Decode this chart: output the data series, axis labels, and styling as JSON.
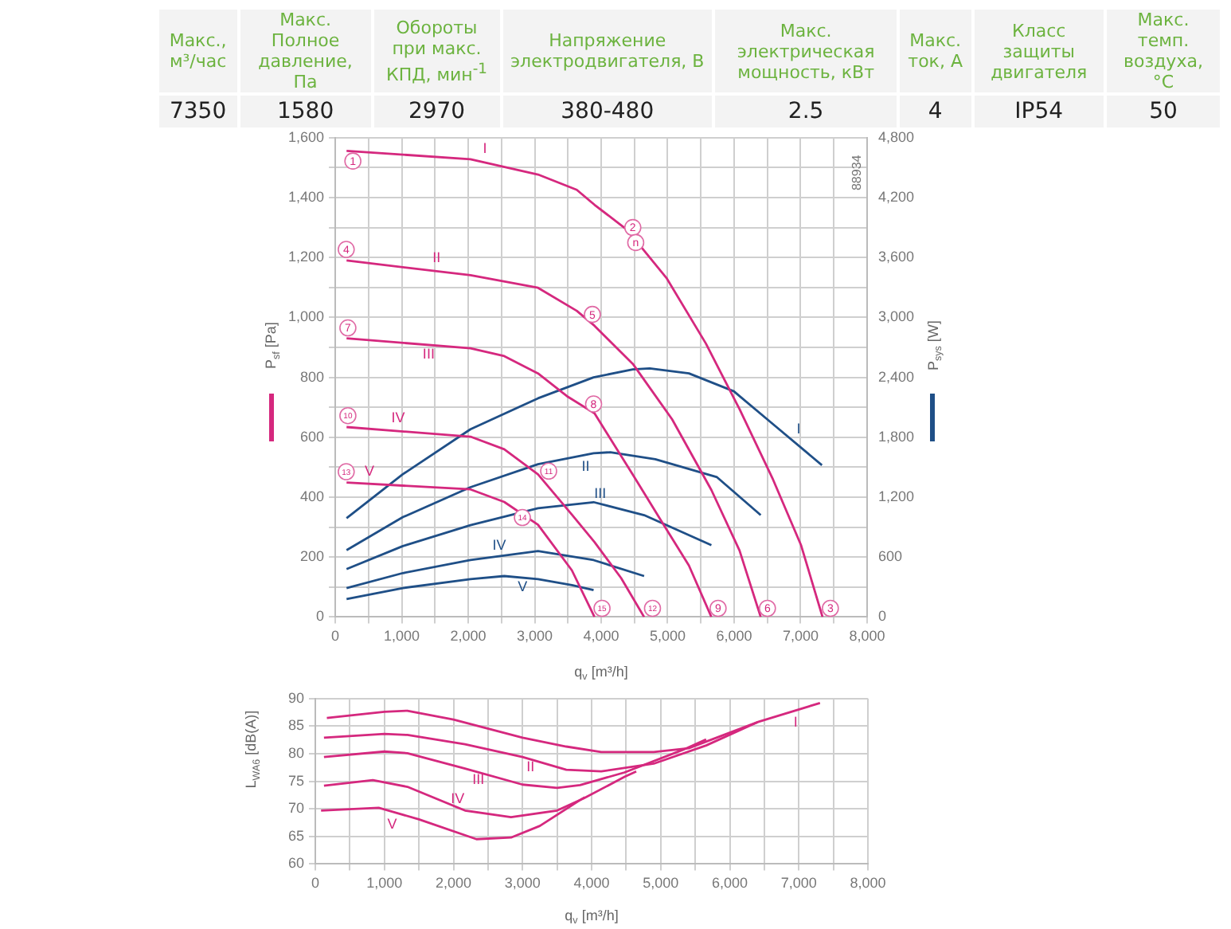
{
  "chart_data": [
    {
      "type": "other",
      "categories": [
        "Макс., м³/час",
        "Макс. Полное давление, Па",
        "Обороты при макс. КПД, мин$^{-1}$",
        "Напряжение электродвигателя, В",
        "Макс. электрическая мощность, кВт",
        "Макс. ток, А",
        "Класс защиты двигателя",
        "Макс. темп. воздуха, °C"
      ],
      "value_labels": [
        "7350",
        "1580",
        "2970",
        "380-480",
        "2.5",
        "4",
        "IP54",
        "50"
      ]
    },
    {
      "type": "line",
      "xlabel": "q$_{v}$ [m³/h]",
      "ylabel": "P$_{sf}$ [Pa]",
      "y2label": "P$_{sys}$ [W]",
      "grid": true,
      "legend": false,
      "marker": "none",
      "xlim": [
        0,
        8000
      ],
      "xticks": [
        0,
        {
          "value": 500,
          "label": null
        },
        {
          "value": 1000,
          "label": "1,000"
        },
        {
          "value": 1500,
          "label": null
        },
        {
          "value": 2000,
          "label": "2,000"
        },
        {
          "value": 2500,
          "label": null
        },
        {
          "value": 3000,
          "label": "3,000"
        },
        {
          "value": 3500,
          "label": null
        },
        {
          "value": 4000,
          "label": "4,000"
        },
        {
          "value": 4500,
          "label": null
        },
        {
          "value": 5000,
          "label": "5,000"
        },
        {
          "value": 5500,
          "label": null
        },
        {
          "value": 6000,
          "label": "6,000"
        },
        {
          "value": 6500,
          "label": null
        },
        {
          "value": 7000,
          "label": "7,000"
        },
        {
          "value": 7500,
          "label": null
        },
        {
          "value": 8000,
          "label": "8,000"
        }
      ],
      "ylim": [
        0,
        1600
      ],
      "yticks": [
        0,
        {
          "value": 100,
          "label": null
        },
        200,
        {
          "value": 300,
          "label": null
        },
        400,
        {
          "value": 500,
          "label": null
        },
        600,
        {
          "value": 700,
          "label": null
        },
        800,
        {
          "value": 900,
          "label": null
        },
        {
          "value": 1000,
          "label": "1,000"
        },
        {
          "value": 1100,
          "label": null
        },
        {
          "value": 1200,
          "label": "1,200"
        },
        {
          "value": 1300,
          "label": null
        },
        {
          "value": 1400,
          "label": "1,400"
        },
        {
          "value": 1500,
          "label": null
        },
        {
          "value": 1600,
          "label": "1,600"
        }
      ],
      "y2lim": [
        0,
        4800
      ],
      "y2ticks": [
        0,
        600,
        {
          "value": 1200,
          "label": "1,200"
        },
        {
          "value": 1800,
          "label": "1,800"
        },
        {
          "value": 2400,
          "label": "2,400"
        },
        {
          "value": 3000,
          "label": "3,000"
        },
        {
          "value": 3600,
          "label": "3,600"
        },
        {
          "value": 4200,
          "label": "4,200"
        },
        {
          "value": 4800,
          "label": "4,800"
        }
      ],
      "series": [
        {
          "name": "I",
          "color": "#d5287e",
          "axis": "y",
          "x": [
            170,
            2034,
            3050,
            3633,
            3900,
            4392,
            4982,
            5575,
            6081,
            6587,
            7008,
            7330
          ],
          "values": [
            1556,
            1528,
            1477,
            1426,
            1376,
            1292,
            1132,
            913,
            694,
            458,
            239,
            0
          ]
        },
        {
          "name": "II",
          "color": "#d5287e",
          "axis": "y",
          "x": [
            170,
            2034,
            3050,
            3633,
            3900,
            4476,
            5067,
            5658,
            6081,
            6400
          ],
          "values": [
            1190,
            1141,
            1099,
            1022,
            972,
            845,
            660,
            424,
            222,
            0
          ]
        },
        {
          "name": "III",
          "color": "#d5287e",
          "axis": "y",
          "x": [
            170,
            2034,
            2542,
            3050,
            3500,
            3900,
            4476,
            4898,
            5320,
            5658
          ],
          "values": [
            930,
            897,
            871,
            813,
            735,
            680,
            475,
            323,
            172,
            0
          ]
        },
        {
          "name": "IV",
          "color": "#d5287e",
          "axis": "y",
          "x": [
            170,
            2034,
            2542,
            3050,
            3559,
            3900,
            4300,
            4646
          ],
          "values": [
            634,
            602,
            560,
            476,
            342,
            250,
            130,
            0
          ]
        },
        {
          "name": "V",
          "color": "#d5287e",
          "axis": "y",
          "x": [
            170,
            2034,
            2542,
            3050,
            3559,
            3900
          ],
          "values": [
            449,
            426,
            384,
            308,
            156,
            0
          ]
        },
        {
          "name": "I",
          "color": "#1f4f87",
          "axis": "y2",
          "x": [
            170,
            1017,
            2034,
            3050,
            3886,
            4476,
            4730,
            5320,
            5996,
            6587,
            7321
          ],
          "values": [
            990,
            1430,
            1880,
            2190,
            2400,
            2480,
            2490,
            2440,
            2260,
            1930,
            1520
          ]
        },
        {
          "name": "II",
          "color": "#1f4f87",
          "axis": "y2",
          "x": [
            170,
            1017,
            2034,
            3050,
            3886,
            4138,
            4814,
            5743,
            6400
          ],
          "values": [
            670,
            1000,
            1300,
            1530,
            1640,
            1650,
            1580,
            1400,
            1020
          ]
        },
        {
          "name": "III",
          "color": "#1f4f87",
          "axis": "y2",
          "x": [
            170,
            1017,
            2034,
            3050,
            3886,
            4646,
            5658
          ],
          "values": [
            480,
            710,
            920,
            1090,
            1150,
            1020,
            720
          ]
        },
        {
          "name": "IV",
          "color": "#1f4f87",
          "axis": "y2",
          "x": [
            170,
            1017,
            2034,
            3050,
            3886,
            4646
          ],
          "values": [
            290,
            440,
            570,
            660,
            570,
            410
          ]
        },
        {
          "name": "V",
          "color": "#1f4f87",
          "axis": "y2",
          "x": [
            170,
            1017,
            2034,
            2542,
            3050,
            3559,
            3886
          ],
          "values": [
            180,
            290,
            380,
            410,
            380,
            320,
            270
          ]
        }
      ],
      "annotations": [
        {
          "text": "1",
          "x": 265,
          "y": 1522
        },
        {
          "text": "2",
          "x": 4476,
          "y": 1300
        },
        {
          "text": "n",
          "x": 4520,
          "y": 1250
        },
        {
          "text": "3",
          "x": 7448,
          "y": 29
        },
        {
          "text": "4",
          "x": 165,
          "y": 1227
        },
        {
          "text": "5",
          "x": 3868,
          "y": 1010
        },
        {
          "text": "6",
          "x": 6501,
          "y": 29
        },
        {
          "text": "7",
          "x": 190,
          "y": 965
        },
        {
          "text": "8",
          "x": 3886,
          "y": 711
        },
        {
          "text": "9",
          "x": 5759,
          "y": 29
        },
        {
          "text": "10",
          "x": 190,
          "y": 672
        },
        {
          "text": "11",
          "x": 3210,
          "y": 487
        },
        {
          "text": "12",
          "x": 4772,
          "y": 29
        },
        {
          "text": "13",
          "x": 165,
          "y": 485
        },
        {
          "text": "14",
          "x": 2815,
          "y": 332
        },
        {
          "text": "15",
          "x": 4013,
          "y": 29
        },
        "88934"
      ]
    },
    {
      "type": "line",
      "xlabel": "q$_{v}$ [m³/h]",
      "ylabel": "L$_{WA6}$ [dB(A)]",
      "grid": true,
      "legend": false,
      "marker": "none",
      "xlim": [
        0,
        8000
      ],
      "xticks": [
        0,
        {
          "value": 500,
          "label": null
        },
        {
          "value": 1000,
          "label": "1,000"
        },
        {
          "value": 1500,
          "label": null
        },
        {
          "value": 2000,
          "label": "2,000"
        },
        {
          "value": 2500,
          "label": null
        },
        {
          "value": 3000,
          "label": "3,000"
        },
        {
          "value": 3500,
          "label": null
        },
        {
          "value": 4000,
          "label": "4,000"
        },
        {
          "value": 4500,
          "label": null
        },
        {
          "value": 5000,
          "label": "5,000"
        },
        {
          "value": 5500,
          "label": null
        },
        {
          "value": 6000,
          "label": "6,000"
        },
        {
          "value": 6500,
          "label": null
        },
        {
          "value": 7000,
          "label": "7,000"
        },
        {
          "value": 7500,
          "label": null
        },
        {
          "value": 8000,
          "label": "8,000"
        }
      ],
      "ylim": [
        60,
        90
      ],
      "yticks": [
        60,
        65,
        70,
        75,
        80,
        85,
        90
      ],
      "series": [
        {
          "name": "I",
          "color": "#d5287e",
          "x": [
            167,
            1000,
            1333,
            2000,
            3000,
            3633,
            4139,
            4899,
            5405,
            6418,
            7306
          ],
          "values": [
            86.5,
            87.6,
            87.8,
            86.2,
            82.9,
            81.3,
            80.3,
            80.3,
            81.0,
            85.8,
            89.2
          ]
        },
        {
          "name": "II",
          "color": "#d5287e",
          "x": [
            125,
            1000,
            1333,
            2167,
            3000,
            3633,
            4139,
            4899,
            5658,
            6400
          ],
          "values": [
            82.9,
            83.6,
            83.4,
            81.7,
            79.4,
            77.1,
            76.8,
            78.2,
            81.5,
            85.7
          ]
        },
        {
          "name": "III",
          "color": "#d5287e",
          "x": [
            125,
            1000,
            1333,
            2167,
            3000,
            3500,
            3833,
            4476,
            5320,
            5658
          ],
          "values": [
            79.4,
            80.4,
            80.1,
            77.3,
            74.4,
            73.8,
            74.3,
            76.6,
            80.7,
            82.6
          ]
        },
        {
          "name": "IV",
          "color": "#d5287e",
          "x": [
            125,
            833,
            1333,
            2167,
            2833,
            3500,
            3886,
            4476,
            4646
          ],
          "values": [
            74.2,
            75.2,
            74.0,
            69.7,
            68.5,
            69.7,
            71.9,
            75.8,
            76.8
          ]
        },
        {
          "name": "V",
          "color": "#d5287e",
          "x": [
            83,
            917,
            1500,
            2333,
            2833,
            3250,
            3833,
            3900
          ],
          "values": [
            69.7,
            70.2,
            68.1,
            64.5,
            64.8,
            66.9,
            71.6,
            72.1
          ]
        }
      ]
    }
  ]
}
